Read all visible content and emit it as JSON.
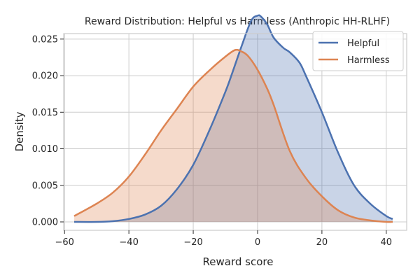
{
  "chart_data": {
    "type": "area",
    "title": "Reward Distribution: Helpful vs Harmless (Anthropic HH-RLHF)",
    "xlabel": "Reward score",
    "ylabel": "Density",
    "xlim": [
      -60,
      42
    ],
    "ylim": [
      0,
      0.0295
    ],
    "xticks": [
      -60,
      -40,
      -20,
      0,
      20,
      40
    ],
    "yticks": [
      0.0,
      0.005,
      0.01,
      0.015,
      0.02,
      0.025
    ],
    "ytick_labels": [
      "0.000",
      "0.005",
      "0.010",
      "0.015",
      "0.020",
      "0.025"
    ],
    "grid": true,
    "legend_position": "top-right",
    "series": [
      {
        "name": "Helpful",
        "color": "#4c72b0",
        "fill_opacity": 0.3,
        "x": [
          -57,
          -50,
          -45,
          -40,
          -35,
          -30,
          -25,
          -20,
          -15,
          -10,
          -8,
          -5,
          -2,
          0,
          1,
          3,
          5,
          8,
          10,
          13,
          15,
          20,
          25,
          30,
          35,
          40,
          42
        ],
        "y": [
          0.0,
          0.0,
          0.0001,
          0.0004,
          0.001,
          0.0022,
          0.0045,
          0.0078,
          0.0125,
          0.0178,
          0.0202,
          0.024,
          0.0275,
          0.0282,
          0.0281,
          0.027,
          0.0252,
          0.0238,
          0.0232,
          0.0218,
          0.02,
          0.015,
          0.0095,
          0.005,
          0.0025,
          0.0008,
          0.0004
        ]
      },
      {
        "name": "Harmless",
        "color": "#dd8452",
        "fill_opacity": 0.3,
        "x": [
          -57,
          -50,
          -45,
          -40,
          -35,
          -30,
          -25,
          -20,
          -15,
          -10,
          -7,
          -5,
          -3,
          0,
          3,
          5,
          10,
          15,
          20,
          25,
          30,
          35,
          40,
          42
        ],
        "y": [
          0.0008,
          0.0025,
          0.004,
          0.0062,
          0.0092,
          0.0125,
          0.0155,
          0.0185,
          0.0207,
          0.0226,
          0.0235,
          0.0233,
          0.0227,
          0.0208,
          0.0182,
          0.016,
          0.0097,
          0.006,
          0.0035,
          0.0016,
          0.0006,
          0.0002,
          0.0,
          0.0
        ]
      }
    ]
  }
}
